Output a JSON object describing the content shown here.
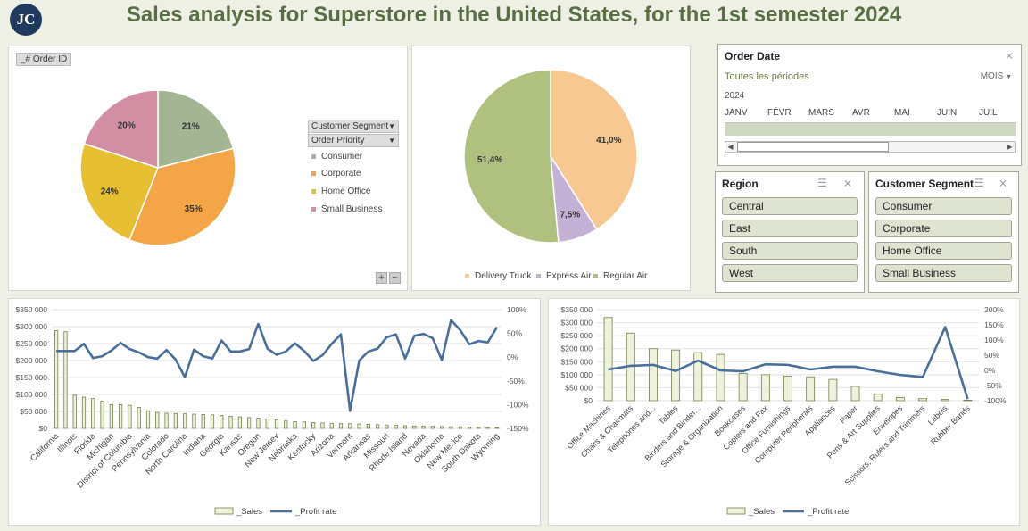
{
  "header": {
    "title": "Sales analysis for Superstore in the United States, for the 1st semester 2024",
    "logo_text": "JC",
    "logo_icon": "jc-logo"
  },
  "colors": {
    "title": "#5a6e45",
    "consumer": "#a4b594",
    "corporate": "#f4a548",
    "home_office": "#e6bf33",
    "small_business": "#d28fa4",
    "delivery_truck": "#f7c892",
    "express_air": "#c3b2d6",
    "regular_air": "#b0c07e",
    "sales_fill": "#eef2dc",
    "sales_stroke": "#6f8246",
    "profit_line": "#4a6e9a"
  },
  "pie_segment": {
    "tag": "_# Order ID",
    "filter_buttons": [
      "Customer Segment",
      "Order Priority"
    ],
    "legend": [
      "Consumer",
      "Corporate",
      "Home Office",
      "Small Business"
    ],
    "plus": "+",
    "minus": "−"
  },
  "pie_ship": {
    "legend": [
      "Delivery Truck",
      "Express Air",
      "Regular Air"
    ]
  },
  "order_date": {
    "title": "Order Date",
    "period_label": "Toutes les périodes",
    "period_mode": "MOIS",
    "year": "2024",
    "months": [
      "JANV",
      "FÉVR",
      "MARS",
      "AVR",
      "MAI",
      "JUIN",
      "JUIL"
    ]
  },
  "region_slicer": {
    "title": "Region",
    "items": [
      "Central",
      "East",
      "South",
      "West"
    ]
  },
  "segment_slicer": {
    "title": "Customer Segment",
    "items": [
      "Consumer",
      "Corporate",
      "Home Office",
      "Small Business"
    ]
  },
  "chart_data": [
    {
      "type": "pie",
      "id": "segment-pie",
      "categories": [
        "Consumer",
        "Corporate",
        "Home Office",
        "Small Business"
      ],
      "values": [
        21,
        35,
        24,
        20
      ],
      "labels": [
        "21%",
        "35%",
        "24%",
        "20%"
      ]
    },
    {
      "type": "pie",
      "id": "ship-pie",
      "categories": [
        "Delivery Truck",
        "Express Air",
        "Regular Air"
      ],
      "values": [
        41.0,
        7.5,
        51.4
      ],
      "labels": [
        "41,0%",
        "7,5%",
        "51,4%"
      ]
    },
    {
      "type": "bar",
      "id": "state-chart",
      "ylim": [
        0,
        350000
      ],
      "y2lim": [
        -150,
        100
      ],
      "yticks": [
        "$0",
        "$50 000",
        "$100 000",
        "$150 000",
        "$200 000",
        "$250 000",
        "$300 000",
        "$350 000"
      ],
      "y2ticks": [
        "-150%",
        "-100%",
        "-50%",
        "0%",
        "50%",
        "100%"
      ],
      "categories": [
        "California",
        "",
        "Illinois",
        "",
        "Florida",
        "",
        "Michigan",
        "",
        "District of Columbia",
        "",
        "Pennsylvania",
        "",
        "Colorado",
        "",
        "North Carolina",
        "",
        "Indiana",
        "",
        "Georgia",
        "",
        "Kansas",
        "",
        "Oregon",
        "",
        "New Jersey",
        "",
        "Nebraska",
        "",
        "Kentucky",
        "",
        "Arizona",
        "",
        "Vermont",
        "",
        "Arkansas",
        "",
        "Missouri",
        "",
        "Rhode Island",
        "",
        "Nevada",
        "",
        "Oklahoma",
        "",
        "New Mexico",
        "",
        "South Dakota",
        "",
        "Wyoming"
      ],
      "series": [
        {
          "name": "_Sales",
          "type": "bar",
          "values": [
            288000,
            285000,
            98000,
            92000,
            88000,
            80000,
            70000,
            70000,
            68000,
            62000,
            52000,
            47000,
            45000,
            44000,
            43000,
            42000,
            41000,
            40000,
            38000,
            36000,
            34000,
            32000,
            30000,
            28000,
            25000,
            22000,
            20000,
            19000,
            17000,
            16000,
            15000,
            14000,
            14000,
            13000,
            12000,
            11000,
            10000,
            9000,
            8000,
            7000,
            6500,
            6000,
            5500,
            5000,
            4500,
            4000,
            3500,
            3000,
            2500
          ]
        },
        {
          "name": "_Profit rate",
          "type": "line",
          "values": [
            13,
            13,
            13,
            28,
            -2,
            2,
            14,
            30,
            17,
            10,
            0,
            -3,
            15,
            -5,
            -42,
            16,
            2,
            -3,
            35,
            12,
            12,
            17,
            70,
            18,
            5,
            12,
            29,
            13,
            -8,
            4,
            28,
            48,
            -113,
            -7,
            12,
            18,
            42,
            48,
            -3,
            45,
            49,
            40,
            -6,
            78,
            57,
            27,
            34,
            31,
            63
          ]
        }
      ]
    },
    {
      "type": "bar",
      "id": "category-chart",
      "ylim": [
        0,
        350000
      ],
      "y2lim": [
        -100,
        200
      ],
      "yticks": [
        "$0",
        "$50 000",
        "$100 000",
        "$150 000",
        "$200 000",
        "$250 000",
        "$300 000",
        "$350 000"
      ],
      "y2ticks": [
        "-100%",
        "-50%",
        "0%",
        "50%",
        "100%",
        "150%",
        "200%"
      ],
      "categories": [
        "Office Machines",
        "Chairs & Chairmats",
        "Telephones and...",
        "Tables",
        "Binders and Binder...",
        "Storage & Organization",
        "Bookcases",
        "Copiers and Fax",
        "Office Furnishings",
        "Computer Peripherals",
        "Appliances",
        "Paper",
        "Pens & Art Supplies",
        "Envelopes",
        "Scissors, Rulers and Trimmers",
        "Labels",
        "Rubber Bands"
      ],
      "series": [
        {
          "name": "_Sales",
          "type": "bar",
          "values": [
            320000,
            260000,
            200000,
            195000,
            185000,
            178000,
            105000,
            100000,
            95000,
            92000,
            82000,
            55000,
            25000,
            12000,
            8000,
            5000,
            2000
          ]
        },
        {
          "name": "_Profit rate",
          "type": "line",
          "values": [
            3,
            15,
            18,
            -2,
            32,
            0,
            -3,
            20,
            18,
            3,
            12,
            12,
            -3,
            -15,
            -22,
            143,
            -95
          ]
        }
      ]
    }
  ]
}
